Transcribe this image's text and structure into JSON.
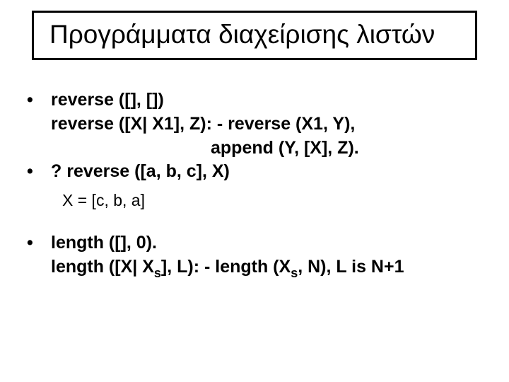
{
  "title": "Προγράμματα διαχείρισης λιστών",
  "block1": {
    "line1": "reverse ([], [])",
    "line2": "reverse ([X| X1], Z): - reverse (X1, Y),",
    "line3": "append (Y, [X], Z)."
  },
  "block2": {
    "line1": "? reverse ([a, b, c], X)",
    "result": "X = [c, b, a]"
  },
  "block3": {
    "line1_pre": "length ([], 0).",
    "line2_a": "length ([X| X",
    "line2_b": "], L): - length (X",
    "line2_c": ", N), L is N+1",
    "sub": "s"
  },
  "colors": {
    "background": "#ffffff",
    "text": "#000000",
    "border": "#000000"
  },
  "fontsizes": {
    "title": 37,
    "body": 25,
    "result": 23
  }
}
